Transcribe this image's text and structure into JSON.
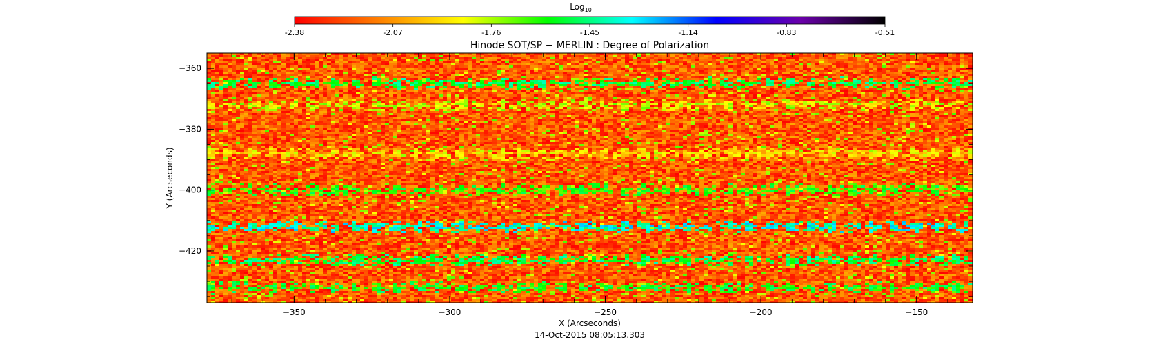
{
  "colorbar": {
    "label_main": "Log",
    "label_sub": "10",
    "ticks": [
      "-2.38",
      "-2.07",
      "-1.76",
      "-1.45",
      "-1.14",
      "-0.83",
      "-0.51"
    ],
    "range": [
      -2.38,
      -0.51
    ],
    "colormap": [
      "#ff0000",
      "#ff8000",
      "#ffff00",
      "#00ff00",
      "#00ffff",
      "#0000ff",
      "#6a00aa",
      "#000000"
    ]
  },
  "chart_data": {
    "type": "heatmap",
    "title": "Hinode SOT/SP − MERLIN : Degree of Polarization",
    "xlabel": "X (Arcseconds)",
    "ylabel": "Y (Arcseconds)",
    "xlim": [
      -378,
      -132
    ],
    "ylim": [
      -437,
      -355
    ],
    "x_ticks": [
      -350,
      -300,
      -250,
      -200,
      -150
    ],
    "x_tick_labels": [
      "−350",
      "−300",
      "−250",
      "−200",
      "−150"
    ],
    "y_ticks": [
      -360,
      -380,
      -400,
      -420
    ],
    "y_tick_labels": [
      "−360",
      "−380",
      "−400",
      "−420"
    ],
    "value_scale": "log10",
    "value_range": [
      -2.38,
      -0.51
    ],
    "dominant_value": -2.2,
    "enhanced_rows_y": [
      -365,
      -372,
      -388,
      -400,
      -412,
      -423,
      -432
    ],
    "enhanced_row_values": [
      -1.5,
      -1.8,
      -1.9,
      -1.6,
      -1.35,
      -1.5,
      -1.55
    ],
    "grid": false,
    "timestamp": "14-Oct-2015 08:05:13.303"
  }
}
